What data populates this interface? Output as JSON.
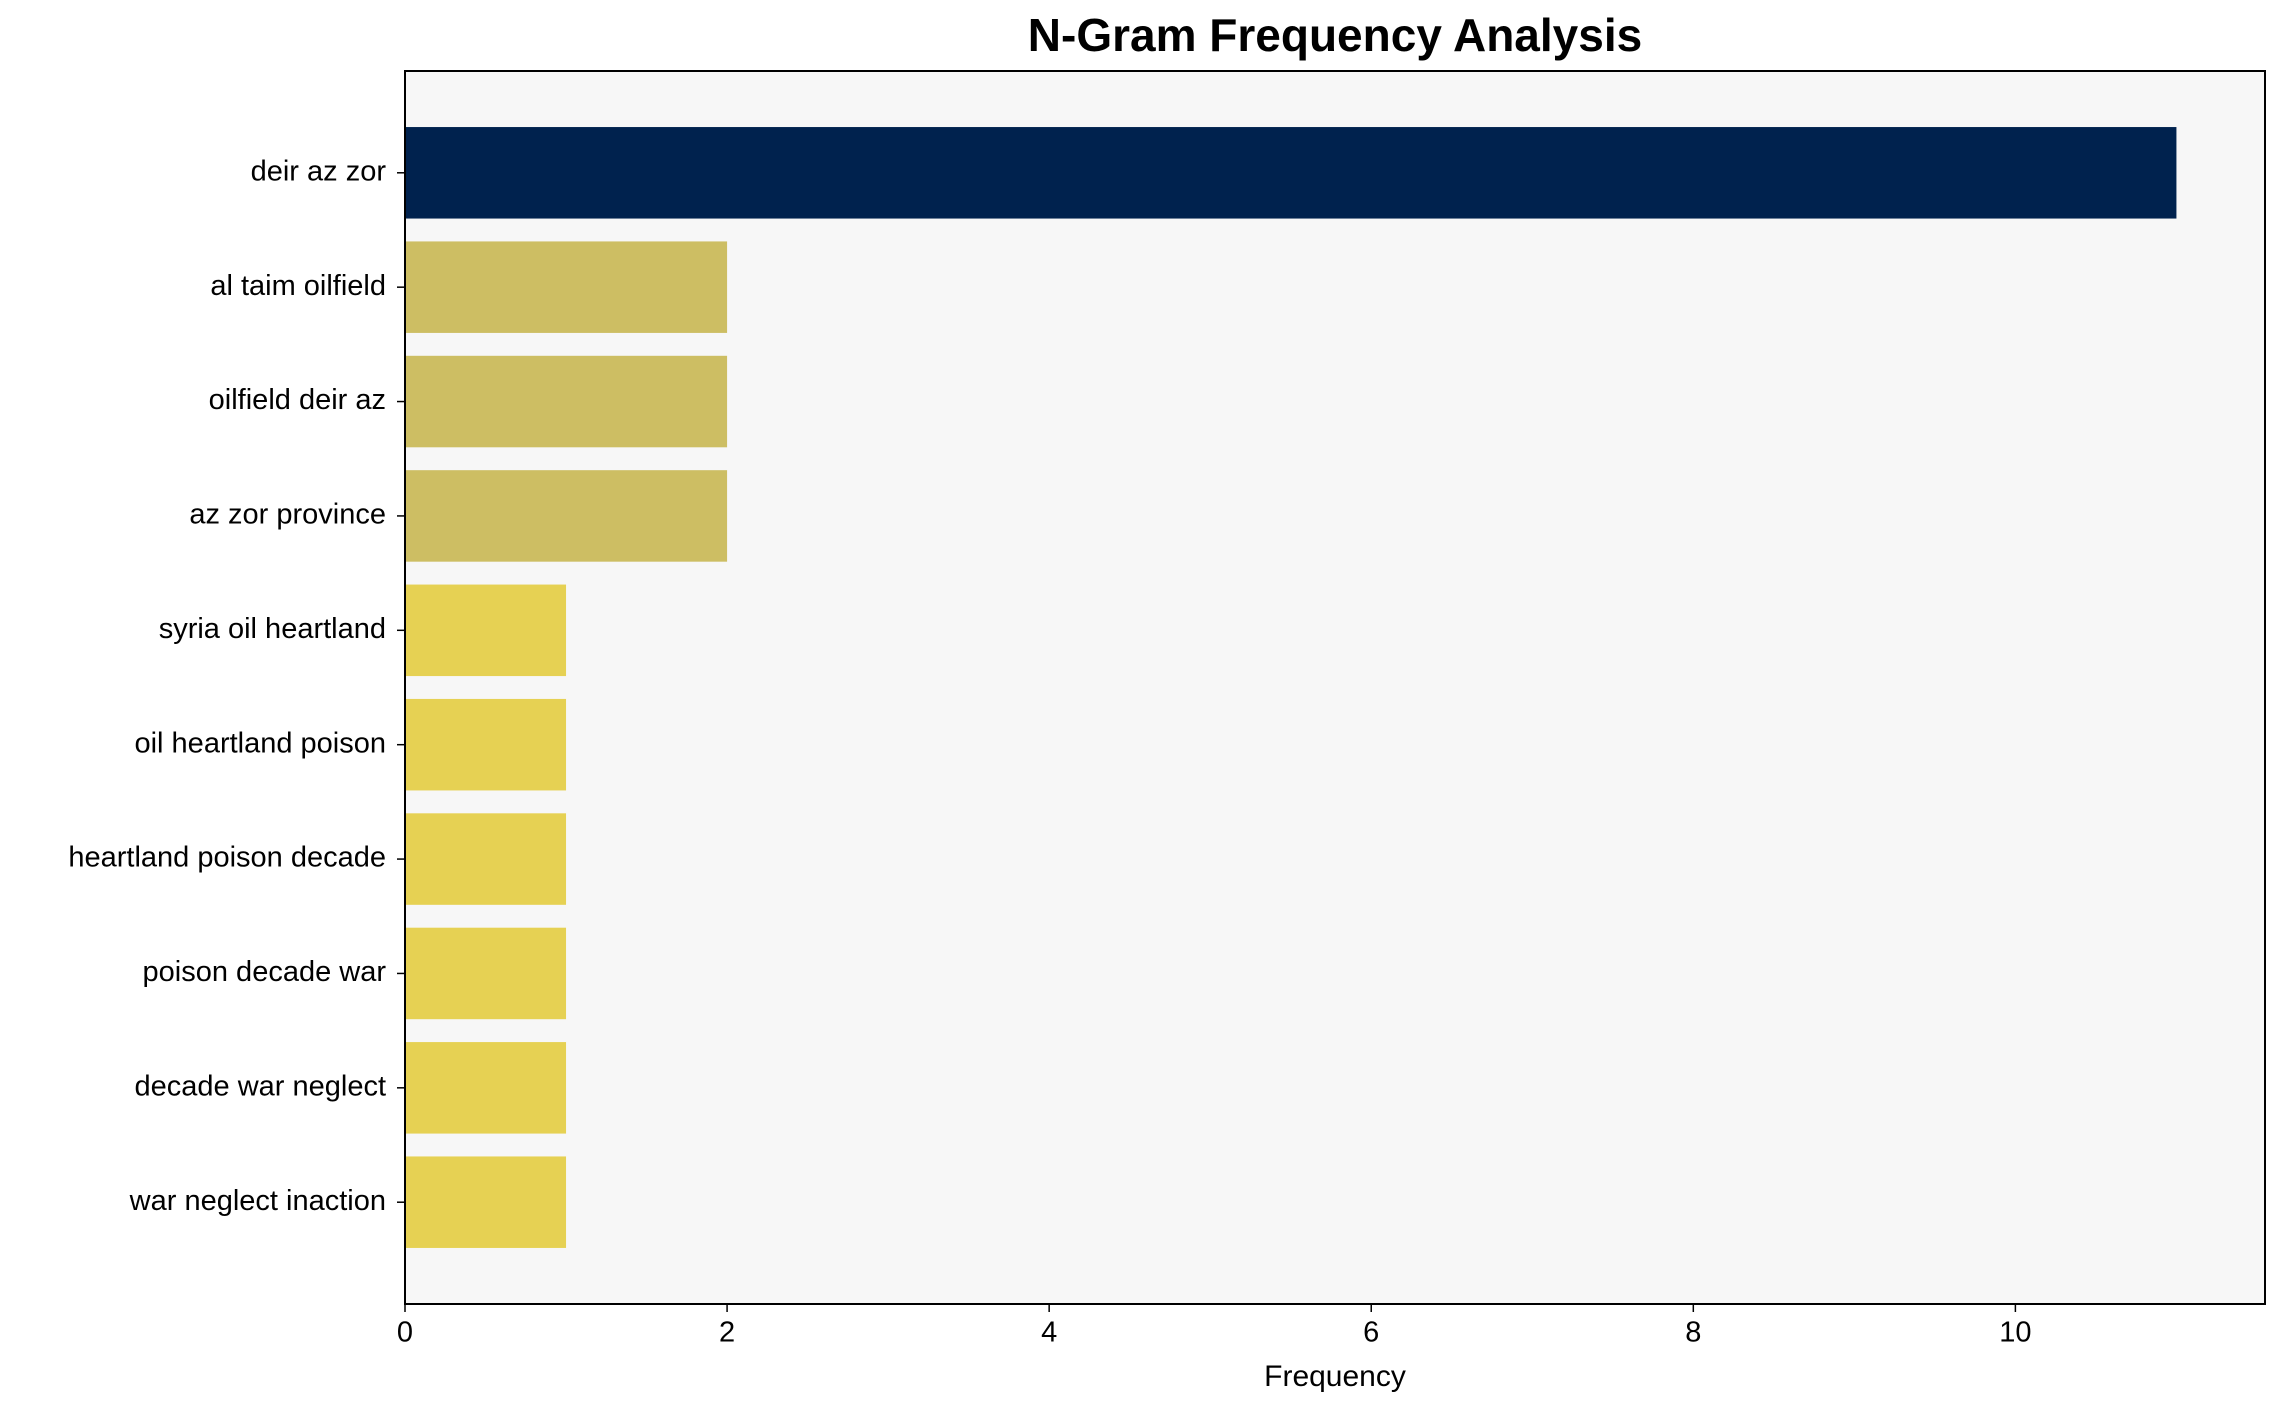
{
  "chart_data": {
    "type": "barh",
    "title": "N-Gram Frequency Analysis",
    "xlabel": "Frequency",
    "categories": [
      "deir az zor",
      "al taim oilfield",
      "oilfield deir az",
      "az zor province",
      "syria oil heartland",
      "oil heartland poison",
      "heartland poison decade",
      "poison decade war",
      "decade war neglect",
      "war neglect inaction"
    ],
    "values": [
      11,
      2,
      2,
      2,
      1,
      1,
      1,
      1,
      1,
      1
    ],
    "colors": [
      "#00224e",
      "#cdbe63",
      "#cdbe63",
      "#cdbe63",
      "#e6d153",
      "#e6d153",
      "#e6d153",
      "#e6d153",
      "#e6d153",
      "#e6d153"
    ],
    "xlim": [
      0,
      11.55
    ],
    "xticks": [
      0,
      2,
      4,
      6,
      8,
      10
    ],
    "grid": false
  }
}
